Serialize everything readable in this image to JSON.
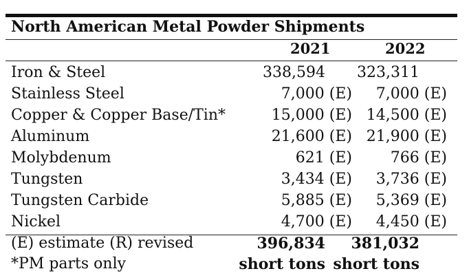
{
  "title": "North American Metal Powder Shipments",
  "years": [
    "2021",
    "2022"
  ],
  "rows": [
    {
      "label": "Iron & Steel",
      "v2021": "338,594",
      "v2022": "323,311"
    },
    {
      "label": "Stainless Steel",
      "v2021": "7,000 (E)",
      "v2022": "7,000 (E)"
    },
    {
      "label": "Copper & Copper Base/Tin*",
      "v2021": "15,000 (E)",
      "v2022": "14,500 (E)"
    },
    {
      "label": "Aluminum",
      "v2021": "21,600 (E)",
      "v2022": "21,900 (E)"
    },
    {
      "label": "Molybdenum",
      "v2021": "621 (E)",
      "v2022": "766 (E)"
    },
    {
      "label": "Tungsten",
      "v2021": "3,434 (E)",
      "v2022": "3,736 (E)"
    },
    {
      "label": "Tungsten  Carbide",
      "v2021": "5,885 (E)",
      "v2022": "5,369 (E)"
    },
    {
      "label": "Nickel",
      "v2021": "4,700 (E)",
      "v2022": "4,450 (E)"
    }
  ],
  "footer": {
    "note1": "(E) estimate  (R) revised",
    "note2": "*PM parts only",
    "total2021": "396,834",
    "total2022": "381,032",
    "unit2021": "short tons",
    "unit2022": "short tons"
  }
}
